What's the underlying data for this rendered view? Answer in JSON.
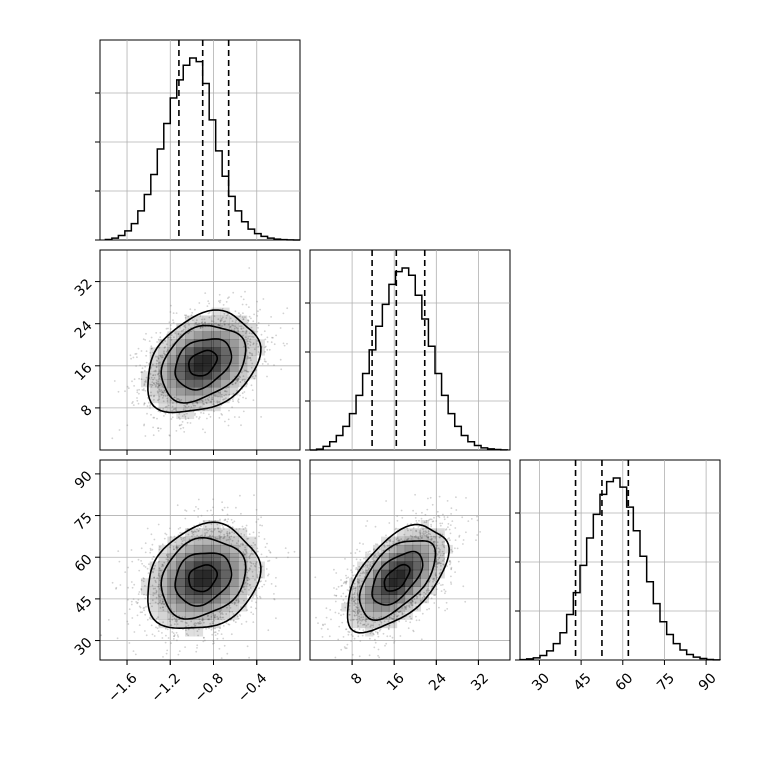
{
  "chart_data": {
    "type": "corner",
    "title": "",
    "grid": true,
    "parameters": [
      {
        "name": "",
        "range": [
          -1.85,
          -0.0
        ],
        "ticks": [
          -1.6,
          -1.2,
          -0.8,
          -0.4
        ],
        "tick_labels": [
          "−1.6",
          "−1.2",
          "−0.8",
          "−0.4"
        ],
        "quantiles": [
          -1.12,
          -0.9,
          -0.66
        ]
      },
      {
        "name": "",
        "range": [
          0,
          38
        ],
        "ticks": [
          8,
          16,
          24,
          32
        ],
        "tick_labels": [
          "8",
          "16",
          "24",
          "32"
        ],
        "quantiles": [
          11.8,
          16.4,
          21.8
        ]
      },
      {
        "name": "",
        "range": [
          23,
          95
        ],
        "ticks": [
          30,
          45,
          60,
          75,
          90
        ],
        "tick_labels": [
          "30",
          "45",
          "60",
          "75",
          "90"
        ],
        "quantiles": [
          43,
          52.5,
          62
        ]
      }
    ],
    "histograms": [
      {
        "param": 0,
        "bin_edges": [
          -1.8,
          -1.74,
          -1.68,
          -1.62,
          -1.56,
          -1.5,
          -1.44,
          -1.38,
          -1.32,
          -1.26,
          -1.2,
          -1.14,
          -1.08,
          -1.02,
          -0.96,
          -0.9,
          -0.84,
          -0.78,
          -0.72,
          -0.66,
          -0.6,
          -0.54,
          -0.48,
          -0.42,
          -0.36,
          -0.3,
          -0.24,
          -0.18,
          -0.12,
          -0.06,
          0.0
        ],
        "counts": [
          0.003,
          0.01,
          0.025,
          0.05,
          0.09,
          0.16,
          0.25,
          0.36,
          0.5,
          0.64,
          0.78,
          0.88,
          0.96,
          1.0,
          0.98,
          0.86,
          0.66,
          0.49,
          0.35,
          0.24,
          0.16,
          0.1,
          0.06,
          0.035,
          0.02,
          0.01,
          0.005,
          0.002,
          0.001,
          0.0
        ]
      },
      {
        "param": 1,
        "bin_edges": [
          0,
          1.25,
          2.5,
          3.75,
          5,
          6.25,
          7.5,
          8.75,
          10,
          11.25,
          12.5,
          13.75,
          15,
          16.25,
          17.5,
          18.75,
          20,
          21.25,
          22.5,
          23.75,
          25,
          26.25,
          27.5,
          28.75,
          30,
          31.25,
          32.5,
          33.75,
          35,
          36.25,
          37.5
        ],
        "counts": [
          0.0,
          0.005,
          0.02,
          0.045,
          0.08,
          0.13,
          0.2,
          0.3,
          0.42,
          0.55,
          0.68,
          0.8,
          0.91,
          0.98,
          1.0,
          0.96,
          0.85,
          0.72,
          0.57,
          0.42,
          0.3,
          0.2,
          0.13,
          0.08,
          0.045,
          0.025,
          0.012,
          0.006,
          0.003,
          0.001
        ]
      },
      {
        "param": 2,
        "bin_edges": [
          23,
          25.4,
          27.8,
          30.2,
          32.6,
          35,
          37.4,
          39.8,
          42.2,
          44.6,
          47,
          49.4,
          51.8,
          54.2,
          56.6,
          59,
          61.4,
          63.8,
          66.2,
          68.6,
          71,
          73.4,
          75.8,
          78.2,
          80.6,
          83,
          85.4,
          87.8,
          90.2,
          92.6,
          95
        ],
        "counts": [
          0.002,
          0.006,
          0.012,
          0.025,
          0.05,
          0.09,
          0.15,
          0.25,
          0.37,
          0.52,
          0.67,
          0.8,
          0.91,
          0.98,
          1.0,
          0.95,
          0.84,
          0.71,
          0.57,
          0.43,
          0.31,
          0.21,
          0.14,
          0.09,
          0.055,
          0.03,
          0.016,
          0.008,
          0.003,
          0.001
        ]
      }
    ],
    "joint": [
      {
        "x_param": 0,
        "y_param": 1,
        "center": [
          -0.9,
          16.5
        ],
        "sigma": [
          0.26,
          4.8
        ],
        "correlation": 0.3,
        "contour_levels_sigma": [
          0.5,
          1.0,
          1.5,
          2.0
        ]
      },
      {
        "x_param": 0,
        "y_param": 2,
        "center": [
          -0.9,
          52.5
        ],
        "sigma": [
          0.26,
          9.5
        ],
        "correlation": 0.2,
        "contour_levels_sigma": [
          0.5,
          1.0,
          1.5,
          2.0
        ]
      },
      {
        "x_param": 1,
        "y_param": 2,
        "center": [
          16.5,
          52.5
        ],
        "sigma": [
          4.8,
          9.5
        ],
        "correlation": 0.55,
        "contour_levels_sigma": [
          0.5,
          1.0,
          1.5,
          2.0
        ]
      }
    ],
    "colors": {
      "line": "#000000",
      "grid": "#b0b0b0",
      "scatter": "#7f7f7f",
      "density": "#000000"
    }
  }
}
